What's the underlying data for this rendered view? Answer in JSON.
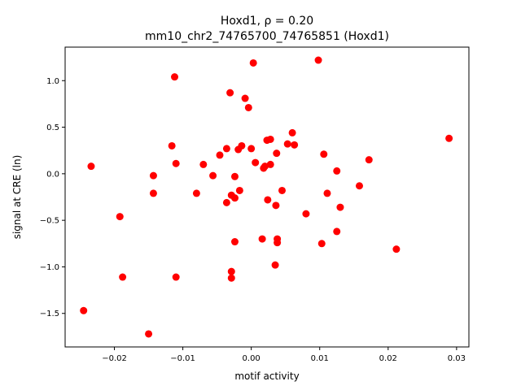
{
  "chart_data": {
    "type": "scatter",
    "title_line1": "Hoxd1, ρ = 0.20",
    "title_line2": "mm10_chr2_74765700_74765851 (Hoxd1)",
    "xlabel": "motif activity",
    "ylabel": "signal at CRE (ln)",
    "xlim": [
      -0.0272,
      0.0318
    ],
    "ylim": [
      -1.86,
      1.36
    ],
    "xticks": [
      -0.02,
      -0.01,
      0.0,
      0.01,
      0.02,
      0.03
    ],
    "xtick_labels": [
      "−0.02",
      "−0.01",
      "0.00",
      "0.01",
      "0.02",
      "0.03"
    ],
    "yticks": [
      -1.5,
      -1.0,
      -0.5,
      0.0,
      0.5,
      1.0
    ],
    "ytick_labels": [
      "−1.5",
      "−1.0",
      "−0.5",
      "0.0",
      "0.5",
      "1.0"
    ],
    "grid": false,
    "legend": "none",
    "marker_color": "#ff0000",
    "points": [
      {
        "x": -0.0245,
        "y": -1.47
      },
      {
        "x": -0.0234,
        "y": 0.08
      },
      {
        "x": -0.0192,
        "y": -0.46
      },
      {
        "x": -0.0188,
        "y": -1.11
      },
      {
        "x": -0.015,
        "y": -1.72
      },
      {
        "x": -0.0143,
        "y": -0.02
      },
      {
        "x": -0.0143,
        "y": -0.21
      },
      {
        "x": -0.0116,
        "y": 0.3
      },
      {
        "x": -0.0112,
        "y": 1.04
      },
      {
        "x": -0.011,
        "y": 0.11
      },
      {
        "x": -0.011,
        "y": -1.11
      },
      {
        "x": -0.008,
        "y": -0.21
      },
      {
        "x": -0.007,
        "y": 0.1
      },
      {
        "x": -0.0056,
        "y": -0.02
      },
      {
        "x": -0.0046,
        "y": 0.2
      },
      {
        "x": -0.0036,
        "y": 0.27
      },
      {
        "x": -0.0036,
        "y": -0.31
      },
      {
        "x": -0.0031,
        "y": 0.87
      },
      {
        "x": -0.0029,
        "y": -0.23
      },
      {
        "x": -0.0029,
        "y": -1.05
      },
      {
        "x": -0.0029,
        "y": -1.12
      },
      {
        "x": -0.0024,
        "y": -0.03
      },
      {
        "x": -0.0024,
        "y": -0.26
      },
      {
        "x": -0.0024,
        "y": -0.73
      },
      {
        "x": -0.0019,
        "y": 0.26
      },
      {
        "x": -0.0017,
        "y": -0.18
      },
      {
        "x": -0.0014,
        "y": 0.3
      },
      {
        "x": -0.0009,
        "y": 0.81
      },
      {
        "x": -0.0004,
        "y": 0.71
      },
      {
        "x": 0.0,
        "y": 0.27
      },
      {
        "x": 0.0003,
        "y": 1.19
      },
      {
        "x": 0.0006,
        "y": 0.12
      },
      {
        "x": 0.0016,
        "y": -0.7
      },
      {
        "x": 0.0018,
        "y": 0.06
      },
      {
        "x": 0.002,
        "y": 0.08
      },
      {
        "x": 0.0023,
        "y": 0.36
      },
      {
        "x": 0.0024,
        "y": -0.28
      },
      {
        "x": 0.0028,
        "y": 0.37
      },
      {
        "x": 0.0028,
        "y": 0.1
      },
      {
        "x": 0.0035,
        "y": -0.98
      },
      {
        "x": 0.0036,
        "y": -0.34
      },
      {
        "x": 0.0037,
        "y": 0.22
      },
      {
        "x": 0.0038,
        "y": -0.7
      },
      {
        "x": 0.0038,
        "y": -0.74
      },
      {
        "x": 0.0045,
        "y": -0.18
      },
      {
        "x": 0.0053,
        "y": 0.32
      },
      {
        "x": 0.006,
        "y": 0.44
      },
      {
        "x": 0.0063,
        "y": 0.31
      },
      {
        "x": 0.008,
        "y": -0.43
      },
      {
        "x": 0.0098,
        "y": 1.22
      },
      {
        "x": 0.0103,
        "y": -0.75
      },
      {
        "x": 0.0106,
        "y": 0.21
      },
      {
        "x": 0.0111,
        "y": -0.21
      },
      {
        "x": 0.0125,
        "y": 0.03
      },
      {
        "x": 0.0125,
        "y": -0.62
      },
      {
        "x": 0.013,
        "y": -0.36
      },
      {
        "x": 0.0158,
        "y": -0.13
      },
      {
        "x": 0.0172,
        "y": 0.15
      },
      {
        "x": 0.0212,
        "y": -0.81
      },
      {
        "x": 0.0289,
        "y": 0.38
      }
    ]
  }
}
